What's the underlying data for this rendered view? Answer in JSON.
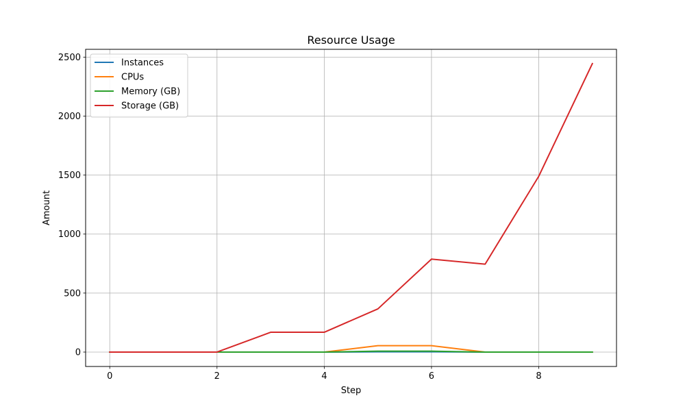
{
  "chart_data": {
    "type": "line",
    "title": "Resource Usage",
    "xlabel": "Step",
    "ylabel": "Amount",
    "xlim": [
      -0.45,
      9.45
    ],
    "ylim": [
      -122,
      2566
    ],
    "xticks": [
      0,
      2,
      4,
      6,
      8
    ],
    "yticks": [
      0,
      500,
      1000,
      1500,
      2000,
      2500
    ],
    "grid": true,
    "legend_placement": "upper-left",
    "x": [
      0,
      1,
      2,
      3,
      4,
      5,
      6,
      7,
      8,
      9
    ],
    "series": [
      {
        "name": "Instances",
        "color": "#1f77b4",
        "values": [
          0,
          0,
          0,
          0,
          0,
          2,
          2,
          0,
          0,
          0
        ]
      },
      {
        "name": "CPUs",
        "color": "#ff7f0e",
        "values": [
          0,
          0,
          0,
          0,
          0,
          54,
          54,
          0,
          0,
          0
        ]
      },
      {
        "name": "Memory (GB)",
        "color": "#2ca02c",
        "values": [
          0,
          0,
          0,
          0,
          0,
          8,
          8,
          0,
          0,
          0
        ]
      },
      {
        "name": "Storage (GB)",
        "color": "#d62728",
        "values": [
          0,
          0,
          0,
          168,
          168,
          366,
          788,
          745,
          1490,
          2445
        ]
      }
    ]
  }
}
